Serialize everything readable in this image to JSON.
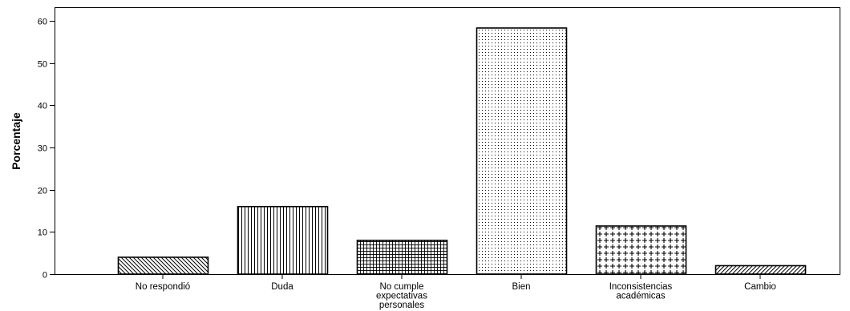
{
  "chart_data": {
    "type": "bar",
    "title": "",
    "xlabel": "",
    "ylabel": "Porcentaje",
    "ylim": [
      0,
      60
    ],
    "yticks": [
      0,
      10,
      20,
      30,
      40,
      50,
      60
    ],
    "grid": false,
    "categories": [
      [
        "No respondió"
      ],
      [
        "Duda"
      ],
      [
        "No cumple",
        "expectativas",
        "personales"
      ],
      [
        "Bien"
      ],
      [
        "Inconsistencias",
        "académicas"
      ],
      [
        "Cambio"
      ]
    ],
    "values": [
      4,
      16,
      8,
      58.3,
      11.4,
      2
    ],
    "patterns": [
      "diagonal-back",
      "vertical",
      "grid",
      "dots",
      "crosses",
      "diagonal-forward"
    ],
    "colors": {
      "fill": "#ffffff",
      "stroke": "#000000"
    }
  }
}
